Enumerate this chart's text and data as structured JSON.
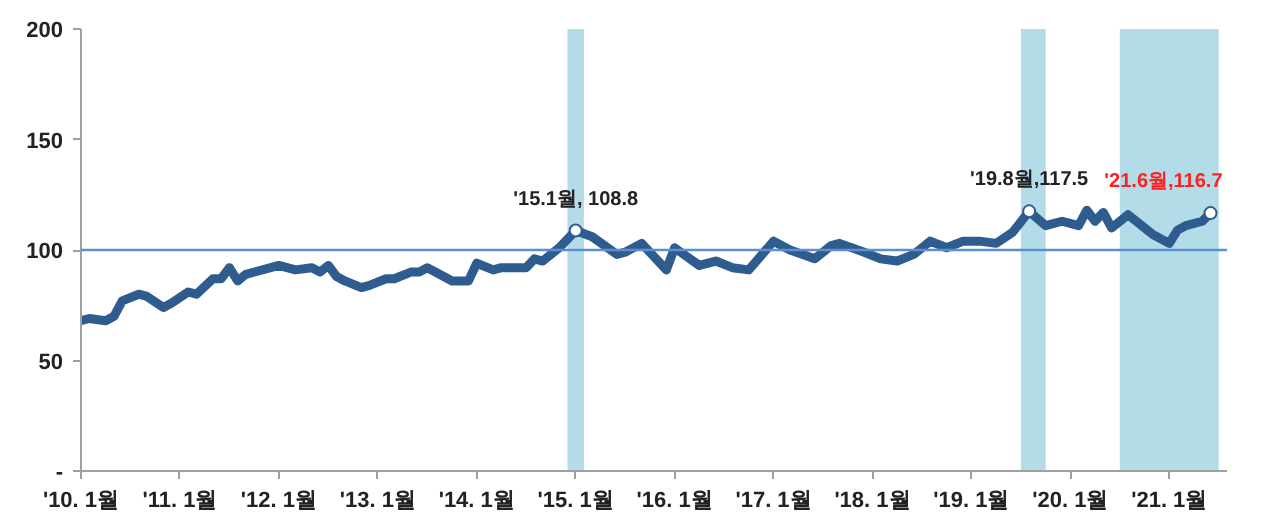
{
  "chart_data": {
    "type": "line",
    "x": [
      "2010-01",
      "2010-02",
      "2010-04",
      "2010-05",
      "2010-06",
      "2010-08",
      "2010-09",
      "2010-11",
      "2010-12",
      "2011-02",
      "2011-03",
      "2011-05",
      "2011-06",
      "2011-07",
      "2011-08",
      "2011-09",
      "2011-12",
      "2012-01",
      "2012-03",
      "2012-05",
      "2012-06",
      "2012-07",
      "2012-08",
      "2012-09",
      "2012-11",
      "2012-12",
      "2013-02",
      "2013-03",
      "2013-05",
      "2013-06",
      "2013-07",
      "2013-09",
      "2013-10",
      "2013-12",
      "2014-01",
      "2014-03",
      "2014-04",
      "2014-07",
      "2014-08",
      "2014-09",
      "2014-11",
      "2015-01",
      "2015-03",
      "2015-06",
      "2015-07",
      "2015-09",
      "2015-12",
      "2016-01",
      "2016-04",
      "2016-06",
      "2016-08",
      "2016-10",
      "2017-01",
      "2017-03",
      "2017-06",
      "2017-08",
      "2017-09",
      "2017-12",
      "2018-02",
      "2018-04",
      "2018-06",
      "2018-08",
      "2018-10",
      "2018-12",
      "2019-02",
      "2019-04",
      "2019-06",
      "2019-08",
      "2019-10",
      "2019-12",
      "2020-02",
      "2020-03",
      "2020-04",
      "2020-05",
      "2020-06",
      "2020-08",
      "2020-09",
      "2020-11",
      "2021-01",
      "2021-02",
      "2021-03",
      "2021-05",
      "2021-06"
    ],
    "series": [
      {
        "color": "#2e5c8f",
        "values": [
          68,
          69,
          68,
          70,
          77,
          80,
          79,
          74,
          76,
          81,
          80,
          87,
          87,
          92,
          86,
          89,
          92,
          93,
          91,
          92,
          90,
          93,
          88,
          86,
          83,
          84,
          87,
          87,
          90,
          90,
          92,
          88,
          86,
          86,
          94,
          91,
          92,
          92,
          96,
          95,
          101,
          108.8,
          106,
          98,
          99,
          103,
          91,
          101,
          93,
          95,
          92,
          91,
          104,
          100,
          96,
          102,
          103,
          99,
          96,
          95,
          98,
          104,
          101,
          104,
          104,
          103,
          108,
          117.5,
          111,
          113,
          111,
          118,
          113,
          117,
          110,
          116,
          113,
          107,
          103,
          109,
          111,
          113,
          116.7
        ]
      }
    ],
    "xlim": [
      "2010-01",
      "2021-08"
    ],
    "xticks": [
      {
        "value": "2010-01",
        "label": "'10. 1월"
      },
      {
        "value": "2011-01",
        "label": "'11. 1월"
      },
      {
        "value": "2012-01",
        "label": "'12. 1월"
      },
      {
        "value": "2013-01",
        "label": "'13. 1월"
      },
      {
        "value": "2014-01",
        "label": "'14. 1월"
      },
      {
        "value": "2015-01",
        "label": "'15. 1월"
      },
      {
        "value": "2016-01",
        "label": "'16. 1월"
      },
      {
        "value": "2017-01",
        "label": "'17. 1월"
      },
      {
        "value": "2018-01",
        "label": "'18. 1월"
      },
      {
        "value": "2019-01",
        "label": "'19. 1월"
      },
      {
        "value": "2020-01",
        "label": "'20. 1월"
      },
      {
        "value": "2021-01",
        "label": "'21. 1월"
      }
    ],
    "ylim": [
      0,
      200
    ],
    "yticks": [
      {
        "value": 0,
        "label": "-"
      },
      50,
      100,
      150,
      200
    ],
    "ref_lines": [
      {
        "axis": "y",
        "value": 100,
        "color": "#5b8fd0"
      }
    ],
    "bands": [
      {
        "axis": "x",
        "from": "2014-12",
        "to": "2015-02",
        "color": "#b3dce8"
      },
      {
        "axis": "x",
        "from": "2019-07",
        "to": "2019-10",
        "color": "#b3dce8"
      },
      {
        "axis": "x",
        "from": "2020-07",
        "to": "2021-07",
        "color": "#b3dce8"
      }
    ],
    "annotations": [
      {
        "text": "'15.1월, 108.8",
        "x": "2015-01",
        "y": 108.8
      },
      {
        "text": "'19.8월,117.5",
        "x": "2019-08",
        "y": 117.5
      },
      {
        "text": "'21.6월,116.7",
        "x": "2021-06",
        "y": 116.7
      }
    ],
    "grid": false,
    "marker": "none",
    "line_style": "solid"
  }
}
